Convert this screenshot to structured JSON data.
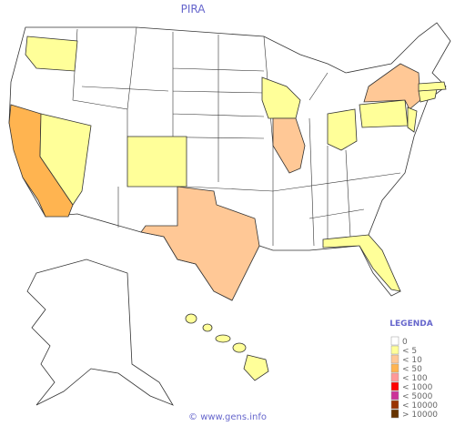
{
  "title": "PIRA",
  "legend": {
    "title": "LEGENDA",
    "items": [
      {
        "label": "0",
        "color": "#ffffff"
      },
      {
        "label": "< 5",
        "color": "#ffff99"
      },
      {
        "label": "< 10",
        "color": "#ffc896"
      },
      {
        "label": "< 50",
        "color": "#ffb450"
      },
      {
        "label": "< 100",
        "color": "#ff9999"
      },
      {
        "label": "< 1000",
        "color": "#ff0000"
      },
      {
        "label": "< 5000",
        "color": "#cc3399"
      },
      {
        "label": "< 10000",
        "color": "#993300"
      },
      {
        "label": "> 10000",
        "color": "#663300"
      }
    ]
  },
  "footer": "© www.gens.info"
}
